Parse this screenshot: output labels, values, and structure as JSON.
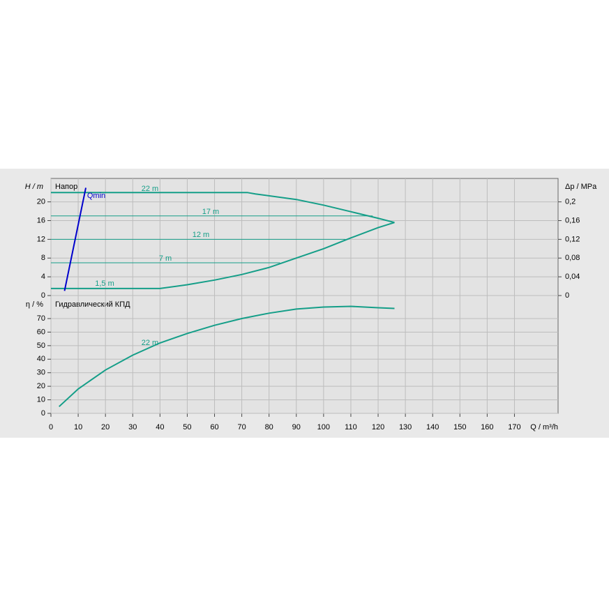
{
  "chart_data": [
    {
      "type": "line",
      "title": "Напор",
      "ylabel": "H / m",
      "y2label": "Δp / MPa",
      "ylim": [
        0,
        25
      ],
      "yticks": [
        0,
        4,
        8,
        12,
        16,
        20
      ],
      "y2lim": [
        0,
        0.25
      ],
      "y2ticks": [
        0,
        {
          "value": 0.04,
          "label": "0,04"
        },
        {
          "value": 0.08,
          "label": "0,08"
        },
        {
          "value": 0.12,
          "label": "0,12"
        },
        {
          "value": 0.16,
          "label": "0,16"
        },
        {
          "value": 0.2,
          "label": "0,2"
        }
      ],
      "grid": true,
      "series": [
        {
          "name": "22 m",
          "color": "#149e88",
          "x": [
            0,
            72,
            75,
            90,
            100,
            110,
            120,
            126
          ],
          "values": [
            22,
            22,
            21.7,
            20.5,
            19.3,
            17.9,
            16.5,
            15.6
          ]
        },
        {
          "name": "17 m",
          "color": "#149e88",
          "x": [
            0,
            118
          ],
          "values": [
            17,
            17
          ]
        },
        {
          "name": "12 m",
          "color": "#149e88",
          "x": [
            0,
            108
          ],
          "values": [
            12,
            12
          ]
        },
        {
          "name": "7 m",
          "color": "#149e88",
          "x": [
            0,
            84
          ],
          "values": [
            7,
            7
          ]
        },
        {
          "name": "1,5 m",
          "color": "#149e88",
          "x": [
            0,
            40,
            50,
            60,
            70,
            80,
            90,
            100,
            110,
            120,
            126
          ],
          "values": [
            1.5,
            1.5,
            2.3,
            3.3,
            4.5,
            6,
            8,
            10,
            12.3,
            14.5,
            15.6
          ]
        },
        {
          "name": "Qmin",
          "color": "#0000cc",
          "x": [
            5,
            12.8
          ],
          "values": [
            1,
            23
          ]
        }
      ]
    },
    {
      "type": "line",
      "title": "Гидравлический КПД",
      "ylabel": "η / %",
      "xlabel": "Q / m³/h",
      "xlim": [
        0,
        186
      ],
      "xticks": [
        0,
        10,
        20,
        30,
        40,
        50,
        60,
        70,
        80,
        90,
        100,
        110,
        120,
        130,
        140,
        150,
        160,
        170
      ],
      "ylim": [
        0,
        87
      ],
      "yticks": [
        0,
        10,
        20,
        30,
        40,
        50,
        60,
        70
      ],
      "grid": true,
      "series": [
        {
          "name": "22 m",
          "color": "#149e88",
          "x": [
            3,
            10,
            20,
            30,
            40,
            50,
            60,
            70,
            80,
            90,
            100,
            110,
            120,
            126
          ],
          "values": [
            5,
            18,
            32,
            43,
            52,
            59,
            65,
            70,
            74,
            77,
            78.5,
            79,
            78,
            77.5
          ]
        }
      ]
    }
  ]
}
